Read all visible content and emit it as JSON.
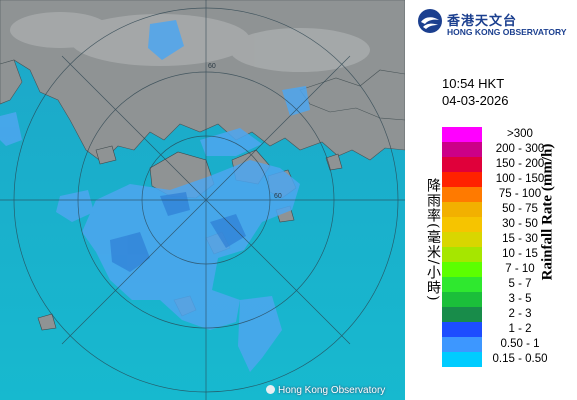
{
  "logo": {
    "name_zh": "香港天文台",
    "name_en": "HONG KONG OBSERVATORY"
  },
  "timestamp": {
    "time": "10:54 HKT",
    "date": "04-03-2026"
  },
  "legend": {
    "title_zh": "降雨率(毫米/小時)",
    "title_en": "Rainfall Rate (mm/h)",
    "items": [
      {
        "label": ">300",
        "color": "#ff00ff"
      },
      {
        "label": "200 - 300",
        "color": "#cc0088"
      },
      {
        "label": "150 - 200",
        "color": "#e0003a"
      },
      {
        "label": "100 - 150",
        "color": "#ff2200"
      },
      {
        "label": "75 - 100",
        "color": "#ff7a00"
      },
      {
        "label": "50 - 75",
        "color": "#f2b000"
      },
      {
        "label": "30 - 50",
        "color": "#f6c400"
      },
      {
        "label": "15 - 30",
        "color": "#d9d600"
      },
      {
        "label": "10 - 15",
        "color": "#a6e600"
      },
      {
        "label": "7 - 10",
        "color": "#5cff00"
      },
      {
        "label": "5 - 7",
        "color": "#2fe82f"
      },
      {
        "label": "3 - 5",
        "color": "#1bbf3a"
      },
      {
        "label": "2 - 3",
        "color": "#188c4a"
      },
      {
        "label": "1 - 2",
        "color": "#1d4dff"
      },
      {
        "label": "0.50 - 1",
        "color": "#3d97ff"
      },
      {
        "label": "0.15 - 0.50",
        "color": "#00ccff"
      }
    ]
  },
  "map": {
    "sea_color": "#19b0c9",
    "land_color": "#8f9394",
    "rain_color": "#4ea6f0",
    "range_label": "60",
    "copyright": "Hong Kong Observatory"
  }
}
